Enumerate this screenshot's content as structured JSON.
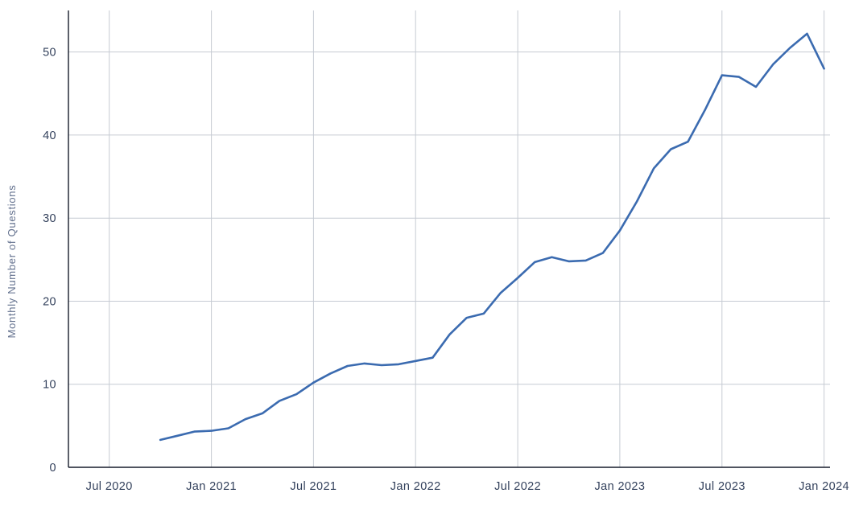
{
  "chart_data": {
    "type": "line",
    "title": "",
    "xlabel": "",
    "ylabel": "Monthly Number of Questions",
    "ylim": [
      0,
      55
    ],
    "grid": true,
    "legend": "none",
    "months": [
      "2020-10",
      "2020-11",
      "2020-12",
      "2021-01",
      "2021-02",
      "2021-03",
      "2021-04",
      "2021-05",
      "2021-06",
      "2021-07",
      "2021-08",
      "2021-09",
      "2021-10",
      "2021-11",
      "2021-12",
      "2022-01",
      "2022-02",
      "2022-03",
      "2022-04",
      "2022-05",
      "2022-06",
      "2022-07",
      "2022-08",
      "2022-09",
      "2022-10",
      "2022-11",
      "2022-12",
      "2023-01",
      "2023-02",
      "2023-03",
      "2023-04",
      "2023-05",
      "2023-06",
      "2023-07",
      "2023-08",
      "2023-09",
      "2023-10",
      "2023-11",
      "2023-12",
      "2024-01"
    ],
    "values": [
      3.3,
      3.8,
      4.3,
      4.4,
      4.7,
      5.8,
      6.5,
      8.0,
      8.8,
      10.2,
      11.3,
      12.2,
      12.5,
      12.3,
      12.4,
      12.8,
      13.2,
      16.0,
      18.0,
      18.5,
      21.0,
      22.8,
      24.7,
      25.3,
      24.8,
      24.9,
      25.8,
      28.5,
      32.0,
      36.0,
      38.3,
      39.2,
      43.0,
      47.2,
      47.0,
      45.8,
      48.5,
      50.5,
      52.2,
      48.0
    ],
    "x_ticks": [
      {
        "month": "2020-07",
        "label": "Jul 2020"
      },
      {
        "month": "2021-01",
        "label": "Jan 2021"
      },
      {
        "month": "2021-07",
        "label": "Jul 2021"
      },
      {
        "month": "2022-01",
        "label": "Jan 2022"
      },
      {
        "month": "2022-07",
        "label": "Jul 2022"
      },
      {
        "month": "2023-01",
        "label": "Jan 2023"
      },
      {
        "month": "2023-07",
        "label": "Jul 2023"
      },
      {
        "month": "2024-01",
        "label": "Jan 2024"
      }
    ],
    "y_ticks": [
      0,
      10,
      20,
      30,
      40,
      50
    ],
    "colors": {
      "background": "#ffffff",
      "line": "#3b6bb0",
      "grid": "#c6cbd3",
      "axis": "#161c2b",
      "tick": "#33415c",
      "axis_title": "#63718e"
    }
  }
}
